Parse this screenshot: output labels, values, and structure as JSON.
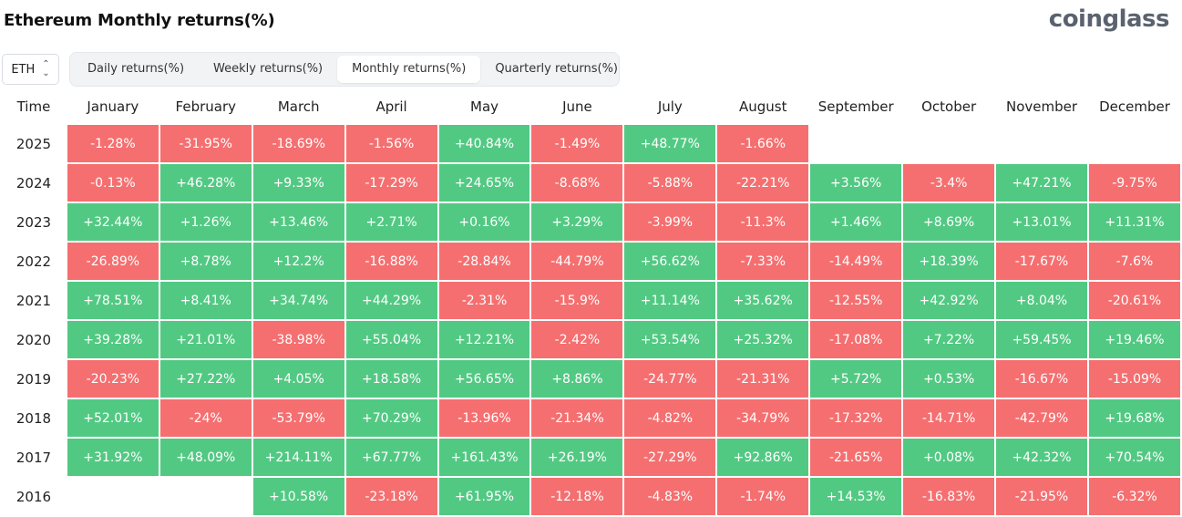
{
  "header": {
    "title": "Ethereum Monthly returns(%)",
    "logo": "coinglass"
  },
  "asset_select": {
    "value": "ETH",
    "icon": "chevron-updown-icon"
  },
  "tabs": [
    {
      "label": "Daily returns(%)",
      "active": false
    },
    {
      "label": "Weekly returns(%)",
      "active": false
    },
    {
      "label": "Monthly returns(%)",
      "active": true
    },
    {
      "label": "Quarterly returns(%)",
      "active": false
    }
  ],
  "colors": {
    "positive": "#52c983",
    "negative": "#f56f70"
  },
  "table": {
    "columns": [
      "Time",
      "January",
      "February",
      "March",
      "April",
      "May",
      "June",
      "July",
      "August",
      "September",
      "October",
      "November",
      "December"
    ],
    "rows": [
      {
        "year": "2025",
        "values": [
          "-1.28%",
          "-31.95%",
          "-18.69%",
          "-1.56%",
          "+40.84%",
          "-1.49%",
          "+48.77%",
          "-1.66%",
          "",
          "",
          "",
          ""
        ]
      },
      {
        "year": "2024",
        "values": [
          "-0.13%",
          "+46.28%",
          "+9.33%",
          "-17.29%",
          "+24.65%",
          "-8.68%",
          "-5.88%",
          "-22.21%",
          "+3.56%",
          "-3.4%",
          "+47.21%",
          "-9.75%"
        ]
      },
      {
        "year": "2023",
        "values": [
          "+32.44%",
          "+1.26%",
          "+13.46%",
          "+2.71%",
          "+0.16%",
          "+3.29%",
          "-3.99%",
          "-11.3%",
          "+1.46%",
          "+8.69%",
          "+13.01%",
          "+11.31%"
        ]
      },
      {
        "year": "2022",
        "values": [
          "-26.89%",
          "+8.78%",
          "+12.2%",
          "-16.88%",
          "-28.84%",
          "-44.79%",
          "+56.62%",
          "-7.33%",
          "-14.49%",
          "+18.39%",
          "-17.67%",
          "-7.6%"
        ]
      },
      {
        "year": "2021",
        "values": [
          "+78.51%",
          "+8.41%",
          "+34.74%",
          "+44.29%",
          "-2.31%",
          "-15.9%",
          "+11.14%",
          "+35.62%",
          "-12.55%",
          "+42.92%",
          "+8.04%",
          "-20.61%"
        ]
      },
      {
        "year": "2020",
        "values": [
          "+39.28%",
          "+21.01%",
          "-38.98%",
          "+55.04%",
          "+12.21%",
          "-2.42%",
          "+53.54%",
          "+25.32%",
          "-17.08%",
          "+7.22%",
          "+59.45%",
          "+19.46%"
        ]
      },
      {
        "year": "2019",
        "values": [
          "-20.23%",
          "+27.22%",
          "+4.05%",
          "+18.58%",
          "+56.65%",
          "+8.86%",
          "-24.77%",
          "-21.31%",
          "+5.72%",
          "+0.53%",
          "-16.67%",
          "-15.09%"
        ]
      },
      {
        "year": "2018",
        "values": [
          "+52.01%",
          "-24%",
          "-53.79%",
          "+70.29%",
          "-13.96%",
          "-21.34%",
          "-4.82%",
          "-34.79%",
          "-17.32%",
          "-14.71%",
          "-42.79%",
          "+19.68%"
        ]
      },
      {
        "year": "2017",
        "values": [
          "+31.92%",
          "+48.09%",
          "+214.11%",
          "+67.77%",
          "+161.43%",
          "+26.19%",
          "-27.29%",
          "+92.86%",
          "-21.65%",
          "+0.08%",
          "+42.32%",
          "+70.54%"
        ]
      },
      {
        "year": "2016",
        "values": [
          "",
          "",
          "+10.58%",
          "-23.18%",
          "+61.95%",
          "-12.18%",
          "-4.83%",
          "-1.74%",
          "+14.53%",
          "-16.83%",
          "-21.95%",
          "-6.32%"
        ]
      }
    ]
  }
}
